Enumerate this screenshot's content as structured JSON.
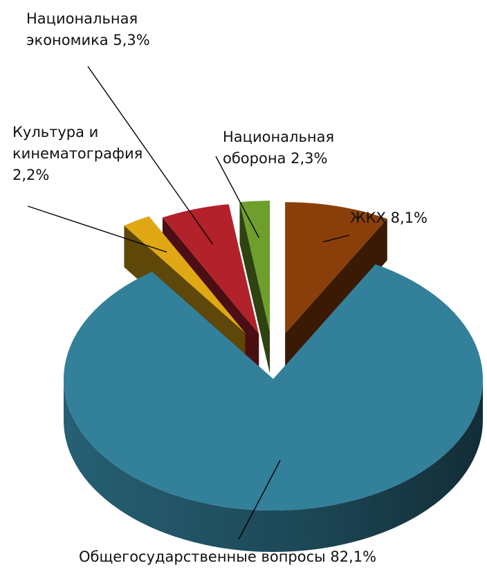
{
  "chart_data": {
    "type": "pie",
    "style": "3d-exploded",
    "legend": "none",
    "slices": [
      {
        "label_lines": [
          "ЖКХ 8,1%"
        ],
        "value": 8.1,
        "color": "#8A3F0A"
      },
      {
        "label_lines": [
          "Общегосударственные вопросы 82,1%"
        ],
        "value": 82.1,
        "color": "#33809A"
      },
      {
        "label_lines": [
          "Культура и",
          "кинематография",
          "2,2%"
        ],
        "value": 2.2,
        "color": "#E0A814"
      },
      {
        "label_lines": [
          "Национальная",
          "экономика 5,3%"
        ],
        "value": 5.3,
        "color": "#B3222A"
      },
      {
        "label_lines": [
          "Национальная",
          "оборона 2,3%"
        ],
        "value": 2.3,
        "color": "#6E9E2C"
      }
    ]
  }
}
